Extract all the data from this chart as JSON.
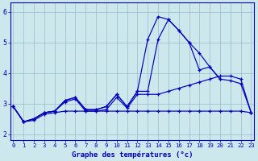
{
  "xlabel": "Graphe des températures (°c)",
  "bg_color": "#cce8ec",
  "line_color": "#0000bb",
  "grid_color": "#99bbcc",
  "yticks": [
    2,
    3,
    4,
    5,
    6
  ],
  "xticks": [
    0,
    1,
    2,
    3,
    4,
    5,
    6,
    7,
    8,
    9,
    10,
    11,
    12,
    13,
    14,
    15,
    16,
    17,
    18,
    19,
    20,
    21,
    22,
    23
  ],
  "xlim": [
    -0.3,
    23.3
  ],
  "ylim": [
    1.8,
    6.3
  ],
  "series": [
    [
      0,
      1,
      2,
      3,
      4,
      5,
      6,
      7,
      8,
      9,
      10,
      11,
      12,
      13,
      14,
      15,
      16,
      17,
      18,
      19,
      20
    ],
    [
      2.9,
      2.4,
      2.5,
      2.7,
      2.75,
      3.1,
      3.2,
      2.8,
      2.8,
      2.9,
      3.3,
      2.9,
      3.4,
      5.1,
      5.85,
      5.75,
      5.4,
      5.0,
      4.65,
      4.2,
      3.8
    ],
    [
      0,
      1,
      2,
      3,
      4,
      5,
      6,
      7,
      8,
      9,
      10,
      11,
      12,
      13,
      14,
      15,
      16,
      17,
      18,
      19,
      20,
      21,
      22,
      23
    ],
    [
      2.9,
      2.4,
      2.5,
      2.7,
      2.75,
      3.1,
      3.2,
      2.8,
      2.8,
      2.9,
      3.3,
      2.9,
      3.4,
      3.4,
      5.1,
      5.75,
      5.4,
      5.0,
      4.1,
      4.2,
      3.8,
      3.75,
      3.65,
      2.7
    ],
    [
      0,
      1,
      2,
      3,
      4,
      5,
      6,
      7,
      8,
      9,
      10,
      11,
      12,
      13,
      14,
      15,
      16,
      17,
      18,
      19,
      20,
      21,
      22,
      23
    ],
    [
      2.9,
      2.4,
      2.5,
      2.7,
      2.75,
      3.05,
      3.15,
      2.75,
      2.75,
      2.8,
      3.2,
      2.85,
      3.3,
      3.3,
      3.3,
      3.4,
      3.5,
      3.6,
      3.7,
      3.8,
      3.9,
      3.9,
      3.8,
      2.7
    ],
    [
      0,
      1,
      2,
      3,
      4,
      5,
      6,
      7,
      8,
      9,
      10,
      11,
      12,
      13,
      14,
      15,
      16,
      17,
      18,
      19,
      20,
      21,
      22,
      23
    ],
    [
      2.9,
      2.4,
      2.45,
      2.65,
      2.7,
      2.75,
      2.75,
      2.75,
      2.75,
      2.75,
      2.75,
      2.75,
      2.75,
      2.75,
      2.75,
      2.75,
      2.75,
      2.75,
      2.75,
      2.75,
      2.75,
      2.75,
      2.75,
      2.7
    ]
  ]
}
